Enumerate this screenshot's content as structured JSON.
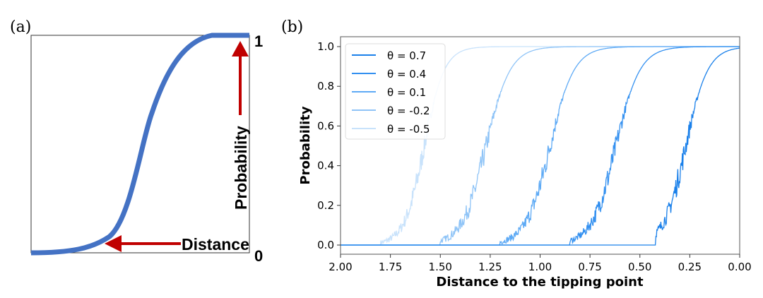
{
  "chart_data": [
    {
      "type": "line",
      "panel_label": "(a)",
      "schematic": true,
      "y_tick_labels": [
        "0",
        "1"
      ],
      "annotations": [
        "Distance",
        "Probability"
      ],
      "colors": {
        "curve": "#4472c4",
        "arrow": "#c00000"
      }
    },
    {
      "type": "line",
      "panel_label": "(b)",
      "xlabel": "Distance to the tipping point",
      "ylabel": "Probability",
      "xlim": [
        2.0,
        0.0
      ],
      "ylim": [
        0.0,
        1.0
      ],
      "x_ticks": [
        "2.00",
        "1.75",
        "1.50",
        "1.25",
        "1.00",
        "0.75",
        "0.50",
        "0.25",
        "0.00"
      ],
      "y_ticks": [
        "0.0",
        "0.2",
        "0.4",
        "0.6",
        "0.8",
        "1.0"
      ],
      "legend_position": "top-left",
      "grid": false,
      "series": [
        {
          "name": "θ = 0.7",
          "color": "#1a80ea",
          "midpoint": 0.27,
          "scale": 0.055,
          "onset": 0.42
        },
        {
          "name": "θ = 0.4",
          "color": "#3390f0",
          "midpoint": 0.62,
          "scale": 0.06,
          "onset": 0.85
        },
        {
          "name": "θ = 0.1",
          "color": "#5eaaf5",
          "midpoint": 0.95,
          "scale": 0.06,
          "onset": 1.2
        },
        {
          "name": "θ = -0.2",
          "color": "#8fc4f7",
          "midpoint": 1.27,
          "scale": 0.06,
          "onset": 1.5
        },
        {
          "name": "θ = -0.5",
          "color": "#c8e2fb",
          "midpoint": 1.58,
          "scale": 0.05,
          "onset": 1.8
        }
      ]
    }
  ]
}
